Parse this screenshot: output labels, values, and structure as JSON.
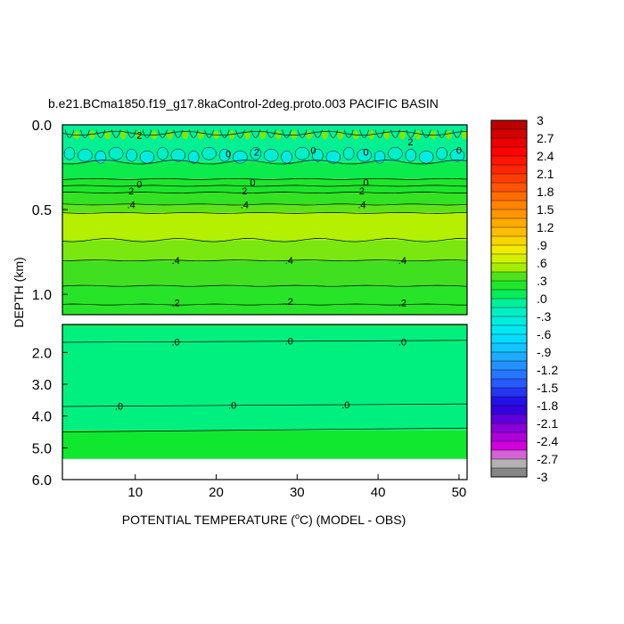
{
  "chart_data": {
    "type": "heatmap",
    "title": "b.e21.BCma1850.f19_g17.8kaControl-2deg.proto.003 PACIFIC BASIN",
    "xlabel_prefix": "POTENTIAL TEMPERATURE (",
    "xlabel_degree": "o",
    "xlabel_suffix": "C) (MODEL - OBS)",
    "ylabel": "DEPTH (km)",
    "xlim": [
      1,
      51
    ],
    "upper_panel": {
      "ylim": [
        0.0,
        1.12
      ],
      "yticks": [
        "0.0",
        "0.5",
        "1.0"
      ],
      "ytick_values": [
        0.0,
        0.5,
        1.0
      ]
    },
    "lower_panel": {
      "ylim": [
        1.12,
        6.0
      ],
      "yticks": [
        "2.0",
        "3.0",
        "4.0",
        "5.0",
        "6.0"
      ],
      "ytick_values": [
        2.0,
        3.0,
        4.0,
        5.0,
        6.0
      ],
      "data_bottom": 5.35
    },
    "xticks": [
      "10",
      "20",
      "30",
      "40",
      "50"
    ],
    "xtick_values": [
      10,
      20,
      30,
      40,
      50
    ],
    "upper_bands": [
      {
        "from": 0.0,
        "to": 0.22,
        "value": -0.05
      },
      {
        "from": 0.22,
        "to": 0.32,
        "value": 0.1
      },
      {
        "from": 0.32,
        "to": 0.4,
        "value": 0.2
      },
      {
        "from": 0.4,
        "to": 0.47,
        "value": 0.3
      },
      {
        "from": 0.47,
        "to": 0.52,
        "value": 0.4
      },
      {
        "from": 0.52,
        "to": 0.68,
        "value": 0.55
      },
      {
        "from": 0.68,
        "to": 0.8,
        "value": 0.45
      },
      {
        "from": 0.8,
        "to": 0.95,
        "value": 0.35
      },
      {
        "from": 0.95,
        "to": 1.12,
        "value": 0.25
      }
    ],
    "lower_bands": [
      {
        "from": 1.12,
        "to": 1.2,
        "value": 0.1
      },
      {
        "from": 1.2,
        "to": 4.45,
        "value": 0.0
      },
      {
        "from": 4.45,
        "to": 5.35,
        "value": 0.15
      }
    ],
    "contour_labels": [
      {
        "text": "2",
        "x": 10.5,
        "y": 0.06
      },
      {
        "text": "0",
        "x": 21.5,
        "y": 0.17
      },
      {
        "text": "2",
        "x": 25.0,
        "y": 0.16
      },
      {
        "text": "0",
        "x": 32.0,
        "y": 0.15
      },
      {
        "text": "0",
        "x": 38.5,
        "y": 0.16
      },
      {
        "text": "2",
        "x": 44.0,
        "y": 0.1
      },
      {
        "text": "0",
        "x": 50.0,
        "y": 0.15
      },
      {
        "text": "0",
        "x": 10.5,
        "y": 0.35
      },
      {
        "text": "0",
        "x": 24.5,
        "y": 0.34
      },
      {
        "text": "0",
        "x": 38.5,
        "y": 0.34
      },
      {
        "text": "2",
        "x": 9.5,
        "y": 0.39
      },
      {
        "text": "2",
        "x": 23.5,
        "y": 0.39
      },
      {
        "text": "2",
        "x": 38.0,
        "y": 0.39
      },
      {
        "text": ".4",
        "x": 9.5,
        "y": 0.47
      },
      {
        "text": ".4",
        "x": 23.5,
        "y": 0.47
      },
      {
        "text": ".4",
        "x": 38.0,
        "y": 0.47
      },
      {
        "text": ".4",
        "x": 15.0,
        "y": 0.8
      },
      {
        "text": ".4",
        "x": 29.0,
        "y": 0.8
      },
      {
        "text": ".4",
        "x": 43.0,
        "y": 0.8
      },
      {
        "text": ".2",
        "x": 15.0,
        "y": 1.05
      },
      {
        "text": ".2",
        "x": 29.0,
        "y": 1.04
      },
      {
        "text": ".2",
        "x": 43.0,
        "y": 1.05
      },
      {
        "text": ".0",
        "x": 15.0,
        "y": 1.66
      },
      {
        "text": ".0",
        "x": 29.0,
        "y": 1.64
      },
      {
        "text": ".0",
        "x": 43.0,
        "y": 1.66
      },
      {
        "text": ".0",
        "x": 8.0,
        "y": 3.68
      },
      {
        "text": ".0",
        "x": 22.0,
        "y": 3.66
      },
      {
        "text": ".0",
        "x": 36.0,
        "y": 3.64
      }
    ],
    "colorbar": {
      "labels": [
        "3",
        "2.7",
        "2.4",
        "2.1",
        "1.8",
        "1.5",
        "1.2",
        ".9",
        ".6",
        ".3",
        ".0",
        "-.3",
        "-.6",
        "-.9",
        "-1.2",
        "-1.5",
        "-1.8",
        "-2.1",
        "-2.4",
        "-2.7",
        "-3"
      ],
      "min": -3,
      "max": 3,
      "step": 0.15,
      "color_stops": [
        {
          "v": -3.0,
          "c": "#707070"
        },
        {
          "v": -2.7,
          "c": "#c8c8c8"
        },
        {
          "v": -2.55,
          "c": "#e000e0"
        },
        {
          "v": -2.2,
          "c": "#9000d8"
        },
        {
          "v": -1.8,
          "c": "#2000e0"
        },
        {
          "v": -1.4,
          "c": "#2860ff"
        },
        {
          "v": -1.0,
          "c": "#20a8ff"
        },
        {
          "v": -0.6,
          "c": "#00e8ff"
        },
        {
          "v": -0.15,
          "c": "#00f0b8"
        },
        {
          "v": 0.0,
          "c": "#00f080"
        },
        {
          "v": 0.15,
          "c": "#10e830"
        },
        {
          "v": 0.35,
          "c": "#40e020"
        },
        {
          "v": 0.55,
          "c": "#b4f000"
        },
        {
          "v": 0.8,
          "c": "#f0f000"
        },
        {
          "v": 1.1,
          "c": "#ffc000"
        },
        {
          "v": 1.6,
          "c": "#ff8000"
        },
        {
          "v": 2.1,
          "c": "#ff3000"
        },
        {
          "v": 2.5,
          "c": "#ff0000"
        },
        {
          "v": 3.0,
          "c": "#b00000"
        }
      ]
    }
  }
}
